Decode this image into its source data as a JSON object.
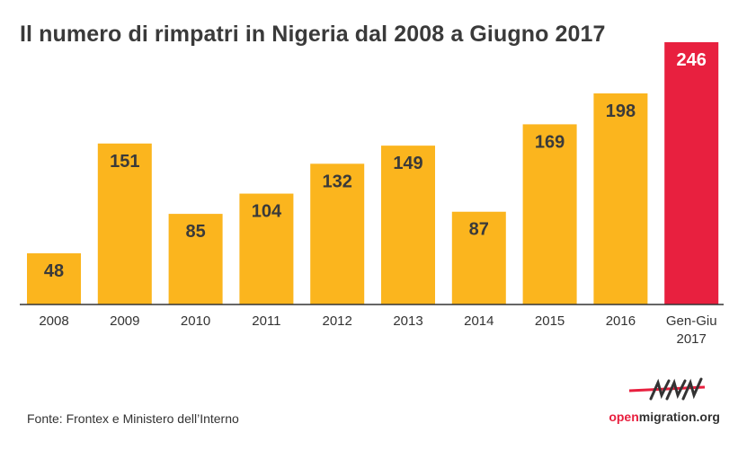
{
  "chart_data": {
    "type": "bar",
    "title": "Il numero di rimpatri in Nigeria dal 2008 a Giugno 2017",
    "categories": [
      "2008",
      "2009",
      "2010",
      "2011",
      "2012",
      "2013",
      "2014",
      "2015",
      "2016",
      "Gen-Giu 2017"
    ],
    "category_lines": [
      [
        "2008"
      ],
      [
        "2009"
      ],
      [
        "2010"
      ],
      [
        "2011"
      ],
      [
        "2012"
      ],
      [
        "2013"
      ],
      [
        "2014"
      ],
      [
        "2015"
      ],
      [
        "2016"
      ],
      [
        "Gen-Giu",
        "2017"
      ]
    ],
    "values": [
      48,
      151,
      85,
      104,
      132,
      149,
      87,
      169,
      198,
      246
    ],
    "highlight_index": 9,
    "xlabel": "",
    "ylabel": "",
    "ylim": [
      0,
      250
    ],
    "grid": false,
    "legend": "none"
  },
  "colors": {
    "bar": "#fbb51e",
    "highlight": "#e8203f",
    "label_dark": "#3a3a3a",
    "label_light": "#ffffff",
    "axis": "#333333"
  },
  "footer": {
    "source": "Fonte: Frontex e Ministero dell’Interno",
    "brand_prefix": "open",
    "brand_suffix": "migration.org"
  },
  "icons": {
    "brand_logo": "barbed-wire-logo-icon"
  }
}
